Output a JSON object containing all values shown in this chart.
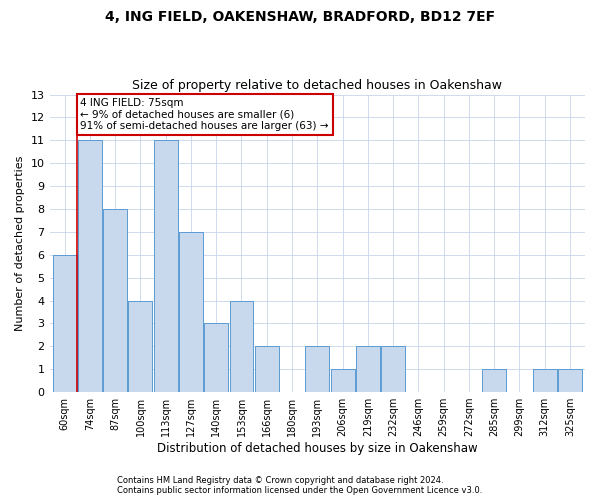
{
  "title1": "4, ING FIELD, OAKENSHAW, BRADFORD, BD12 7EF",
  "title2": "Size of property relative to detached houses in Oakenshaw",
  "xlabel": "Distribution of detached houses by size in Oakenshaw",
  "ylabel": "Number of detached properties",
  "categories": [
    "60sqm",
    "74sqm",
    "87sqm",
    "100sqm",
    "113sqm",
    "127sqm",
    "140sqm",
    "153sqm",
    "166sqm",
    "180sqm",
    "193sqm",
    "206sqm",
    "219sqm",
    "232sqm",
    "246sqm",
    "259sqm",
    "272sqm",
    "285sqm",
    "299sqm",
    "312sqm",
    "325sqm"
  ],
  "values": [
    6,
    11,
    8,
    4,
    11,
    7,
    3,
    4,
    2,
    0,
    2,
    1,
    2,
    2,
    0,
    0,
    0,
    1,
    0,
    1,
    1
  ],
  "bar_color": "#c9d9ed",
  "bar_edge_color": "#5b9bd5",
  "grid_color": "#c8d4e8",
  "annotation_line1": "4 ING FIELD: 75sqm",
  "annotation_line2": "← 9% of detached houses are smaller (6)",
  "annotation_line3": "91% of semi-detached houses are larger (63) →",
  "red_line_x": 0.5,
  "ylim": [
    0,
    13
  ],
  "yticks": [
    0,
    1,
    2,
    3,
    4,
    5,
    6,
    7,
    8,
    9,
    10,
    11,
    12,
    13
  ],
  "footer1": "Contains HM Land Registry data © Crown copyright and database right 2024.",
  "footer2": "Contains public sector information licensed under the Open Government Licence v3.0.",
  "red_line_color": "#cc0000",
  "annotation_box_color": "#cc0000",
  "background_color": "#ffffff",
  "title1_fontsize": 10,
  "title2_fontsize": 9,
  "ylabel_text": "Number of detached properties"
}
